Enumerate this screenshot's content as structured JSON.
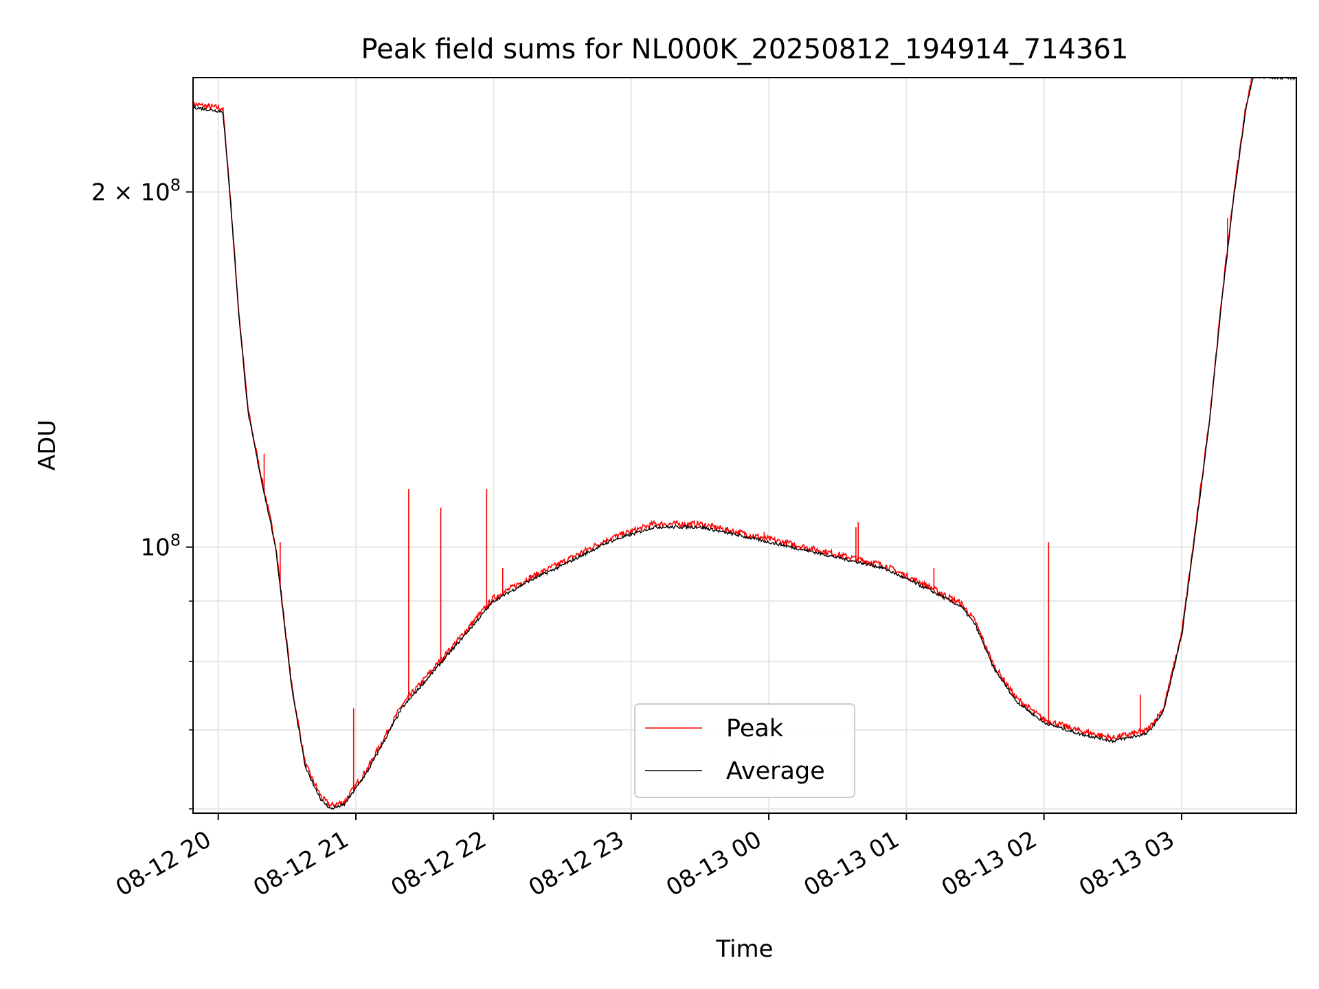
{
  "chart_data": {
    "type": "line",
    "title": "Peak field sums for NL000K_20250812_194914_714361",
    "xlabel": "Time",
    "ylabel": "ADU",
    "yscale": "log",
    "ylim": [
      59500000,
      250000000
    ],
    "xlim": [
      "2025-08-12 19:49",
      "2025-08-13 03:50"
    ],
    "grid": true,
    "legend_position": "bottom-center",
    "x_ticks": [
      "2025-08-12 20:00",
      "2025-08-12 21:00",
      "2025-08-12 22:00",
      "2025-08-12 23:00",
      "2025-08-13 00:00",
      "2025-08-13 01:00",
      "2025-08-13 02:00",
      "2025-08-13 03:00"
    ],
    "x_tick_labels": [
      "08-12 20",
      "08-12 21",
      "08-12 22",
      "08-12 23",
      "08-13 00",
      "08-13 01",
      "08-13 02",
      "08-13 03"
    ],
    "y_ticks": [
      100000000,
      200000000
    ],
    "y_tick_labels": [
      {
        "mant": "",
        "exp": "8",
        "full": "10^8"
      },
      {
        "mant": "2 × ",
        "exp": "8",
        "full": "2 × 10^8"
      }
    ],
    "y_minor_ticks": [
      60000000,
      70000000,
      80000000,
      90000000
    ],
    "series": [
      {
        "name": "Peak",
        "color": "#ff0000",
        "spikes": [
          [
            "2025-08-12 20:20",
            120000000
          ],
          [
            "2025-08-12 20:27",
            101000000
          ],
          [
            "2025-08-12 20:59",
            73000000
          ],
          [
            "2025-08-12 21:23",
            112000000
          ],
          [
            "2025-08-12 21:37",
            108000000
          ],
          [
            "2025-08-12 21:57",
            112000000
          ],
          [
            "2025-08-12 22:04",
            96000000
          ],
          [
            "2025-08-12 23:58",
            103000000
          ],
          [
            "2025-08-13 00:38",
            104000000
          ],
          [
            "2025-08-13 00:39",
            105000000
          ],
          [
            "2025-08-13 01:12",
            96000000
          ],
          [
            "2025-08-13 02:02",
            101000000
          ],
          [
            "2025-08-13 02:42",
            75000000
          ],
          [
            "2025-08-13 03:20",
            190000000
          ]
        ]
      },
      {
        "name": "Average",
        "color": "#000000",
        "points": [
          [
            "2025-08-12 19:49",
            236000000
          ],
          [
            "2025-08-12 19:55",
            235000000
          ],
          [
            "2025-08-12 20:02",
            234000000
          ],
          [
            "2025-08-12 20:05",
            200000000
          ],
          [
            "2025-08-12 20:09",
            157000000
          ],
          [
            "2025-08-12 20:13",
            130000000
          ],
          [
            "2025-08-12 20:18",
            116000000
          ],
          [
            "2025-08-12 20:25",
            100000000
          ],
          [
            "2025-08-12 20:32",
            76000000
          ],
          [
            "2025-08-12 20:38",
            65000000
          ],
          [
            "2025-08-12 20:45",
            61000000
          ],
          [
            "2025-08-12 20:49",
            60000000
          ],
          [
            "2025-08-12 20:55",
            60500000
          ],
          [
            "2025-08-12 21:05",
            64500000
          ],
          [
            "2025-08-12 21:20",
            73000000
          ],
          [
            "2025-08-12 21:40",
            81000000
          ],
          [
            "2025-08-12 22:00",
            90000000
          ],
          [
            "2025-08-12 22:15",
            93500000
          ],
          [
            "2025-08-12 22:30",
            96500000
          ],
          [
            "2025-08-12 22:50",
            101000000
          ],
          [
            "2025-08-12 23:10",
            104000000
          ],
          [
            "2025-08-12 23:30",
            104000000
          ],
          [
            "2025-08-12 23:50",
            102000000
          ],
          [
            "2025-08-13 00:10",
            100000000
          ],
          [
            "2025-08-13 00:30",
            98000000
          ],
          [
            "2025-08-13 00:50",
            96000000
          ],
          [
            "2025-08-13 01:10",
            92000000
          ],
          [
            "2025-08-13 01:24",
            89000000
          ],
          [
            "2025-08-13 01:30",
            86000000
          ],
          [
            "2025-08-13 01:38",
            79000000
          ],
          [
            "2025-08-13 01:48",
            74000000
          ],
          [
            "2025-08-13 02:00",
            71000000
          ],
          [
            "2025-08-13 02:15",
            69500000
          ],
          [
            "2025-08-13 02:30",
            68500000
          ],
          [
            "2025-08-13 02:45",
            69500000
          ],
          [
            "2025-08-13 02:52",
            72500000
          ],
          [
            "2025-08-13 03:00",
            84000000
          ],
          [
            "2025-08-13 03:06",
            103000000
          ],
          [
            "2025-08-13 03:12",
            127000000
          ],
          [
            "2025-08-13 03:18",
            165000000
          ],
          [
            "2025-08-13 03:23",
            200000000
          ],
          [
            "2025-08-13 03:28",
            235000000
          ],
          [
            "2025-08-13 03:31",
            250000000
          ],
          [
            "2025-08-13 03:50",
            250000000
          ]
        ]
      }
    ]
  }
}
